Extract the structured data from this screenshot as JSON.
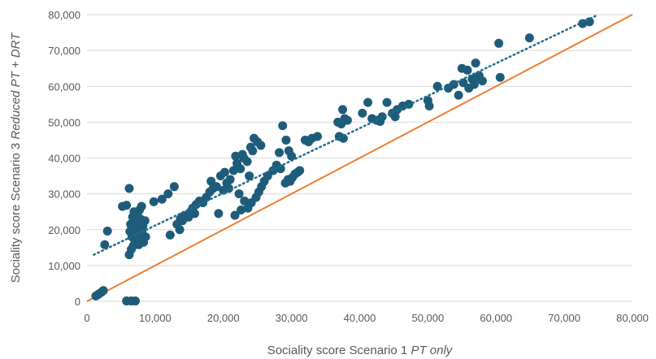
{
  "chart_data": {
    "type": "scatter",
    "title": "",
    "xlabel": {
      "main": "Sociality score Scenario 1 ",
      "italic": "PT only"
    },
    "ylabel": {
      "main": "Sociality score Scenario 3 ",
      "italic": "Reduced PT + DRT"
    },
    "xlim": [
      0,
      80000
    ],
    "ylim": [
      0,
      80000
    ],
    "x_ticks": [
      "0",
      "10,000",
      "20,000",
      "30,000",
      "40,000",
      "50,000",
      "60,000",
      "70,000",
      "80,000"
    ],
    "y_ticks": [
      "0",
      "10,000",
      "20,000",
      "30,000",
      "40,000",
      "50,000",
      "60,000",
      "70,000",
      "80,000"
    ],
    "grid": "horizontal",
    "colors": {
      "points": "#1f5c7a",
      "trendline": "#1f6d8c",
      "reference_line": "#ed7d31",
      "grid": "#d9d9d9",
      "text": "#595959"
    },
    "reference_line": {
      "type": "y=x",
      "from": [
        0,
        0
      ],
      "to": [
        80000,
        80000
      ]
    },
    "trendline": {
      "type": "linear",
      "style": "dotted",
      "from": [
        1000,
        13000
      ],
      "to": [
        75000,
        80000
      ]
    },
    "points": [
      [
        1300,
        1500
      ],
      [
        1700,
        2000
      ],
      [
        2100,
        2500
      ],
      [
        2400,
        3000
      ],
      [
        5800,
        100
      ],
      [
        6500,
        100
      ],
      [
        7100,
        100
      ],
      [
        2600,
        15800
      ],
      [
        3000,
        19600
      ],
      [
        5200,
        26500
      ],
      [
        5800,
        26800
      ],
      [
        6200,
        31500
      ],
      [
        6200,
        13000
      ],
      [
        6500,
        14500
      ],
      [
        6800,
        15500
      ],
      [
        7000,
        17000
      ],
      [
        6600,
        18000
      ],
      [
        6300,
        19500
      ],
      [
        6900,
        20500
      ],
      [
        7200,
        22000
      ],
      [
        6700,
        23500
      ],
      [
        7400,
        24500
      ],
      [
        7700,
        25500
      ],
      [
        8000,
        26500
      ],
      [
        7500,
        20500
      ],
      [
        8200,
        21000
      ],
      [
        7900,
        18500
      ],
      [
        8300,
        16500
      ],
      [
        7100,
        19000
      ],
      [
        6400,
        21500
      ],
      [
        7800,
        23000
      ],
      [
        8500,
        22500
      ],
      [
        7300,
        17500
      ],
      [
        8100,
        19800
      ],
      [
        8600,
        18000
      ],
      [
        7600,
        15800
      ],
      [
        6900,
        25000
      ],
      [
        9800,
        27800
      ],
      [
        11000,
        28500
      ],
      [
        11900,
        30000
      ],
      [
        12800,
        32000
      ],
      [
        12200,
        18500
      ],
      [
        13200,
        21500
      ],
      [
        13700,
        23000
      ],
      [
        13600,
        20000
      ],
      [
        14000,
        22500
      ],
      [
        14300,
        24000
      ],
      [
        14900,
        23500
      ],
      [
        15200,
        25000
      ],
      [
        15500,
        26000
      ],
      [
        15800,
        24500
      ],
      [
        16000,
        27000
      ],
      [
        16500,
        28000
      ],
      [
        17000,
        27500
      ],
      [
        17500,
        29000
      ],
      [
        18000,
        30500
      ],
      [
        18500,
        31500
      ],
      [
        19000,
        32000
      ],
      [
        18200,
        33500
      ],
      [
        19600,
        35000
      ],
      [
        20000,
        31000
      ],
      [
        20500,
        33000
      ],
      [
        21000,
        34000
      ],
      [
        20200,
        36000
      ],
      [
        21500,
        36500
      ],
      [
        22000,
        38500
      ],
      [
        22500,
        37000
      ],
      [
        23000,
        40000
      ],
      [
        23500,
        39000
      ],
      [
        21800,
        40500
      ],
      [
        22800,
        41000
      ],
      [
        24000,
        43000
      ],
      [
        24500,
        45500
      ],
      [
        25000,
        44500
      ],
      [
        25500,
        43500
      ],
      [
        24300,
        42000
      ],
      [
        23800,
        35000
      ],
      [
        22300,
        30000
      ],
      [
        23100,
        28000
      ],
      [
        23600,
        26000
      ],
      [
        24100,
        27500
      ],
      [
        24800,
        29000
      ],
      [
        25200,
        30500
      ],
      [
        25600,
        32000
      ],
      [
        26000,
        33500
      ],
      [
        26500,
        35000
      ],
      [
        19300,
        24500
      ],
      [
        21700,
        24000
      ],
      [
        22600,
        25500
      ],
      [
        20800,
        31500
      ],
      [
        27300,
        36500
      ],
      [
        27800,
        38000
      ],
      [
        28200,
        41500
      ],
      [
        28700,
        49000
      ],
      [
        29200,
        45000
      ],
      [
        29600,
        42000
      ],
      [
        30000,
        40500
      ],
      [
        29100,
        33000
      ],
      [
        29500,
        34000
      ],
      [
        30100,
        34500
      ],
      [
        30500,
        35500
      ],
      [
        30900,
        36000
      ],
      [
        31200,
        36500
      ],
      [
        29800,
        33500
      ],
      [
        28400,
        37000
      ],
      [
        32000,
        45000
      ],
      [
        32500,
        44500
      ],
      [
        33000,
        45500
      ],
      [
        33800,
        46000
      ],
      [
        36800,
        50000
      ],
      [
        37300,
        49500
      ],
      [
        37800,
        51000
      ],
      [
        37500,
        53500
      ],
      [
        38200,
        50500
      ],
      [
        37000,
        46000
      ],
      [
        37600,
        45500
      ],
      [
        40400,
        52500
      ],
      [
        41200,
        55500
      ],
      [
        41800,
        51000
      ],
      [
        42500,
        50500
      ],
      [
        43300,
        51500
      ],
      [
        44000,
        55500
      ],
      [
        44800,
        52500
      ],
      [
        45500,
        53500
      ],
      [
        46300,
        54500
      ],
      [
        47200,
        55000
      ],
      [
        45200,
        51500
      ],
      [
        43000,
        50200
      ],
      [
        50000,
        56000
      ],
      [
        50200,
        54500
      ],
      [
        51400,
        60000
      ],
      [
        53000,
        59500
      ],
      [
        53800,
        60500
      ],
      [
        54500,
        57500
      ],
      [
        55200,
        61000
      ],
      [
        55000,
        65000
      ],
      [
        56000,
        59500
      ],
      [
        56500,
        62000
      ],
      [
        57000,
        66500
      ],
      [
        57500,
        63000
      ],
      [
        58000,
        61500
      ],
      [
        56800,
        60500
      ],
      [
        55800,
        64500
      ],
      [
        57200,
        62500
      ],
      [
        60600,
        62500
      ],
      [
        60400,
        72000
      ],
      [
        64900,
        73500
      ],
      [
        72700,
        77500
      ],
      [
        73700,
        78000
      ]
    ]
  }
}
